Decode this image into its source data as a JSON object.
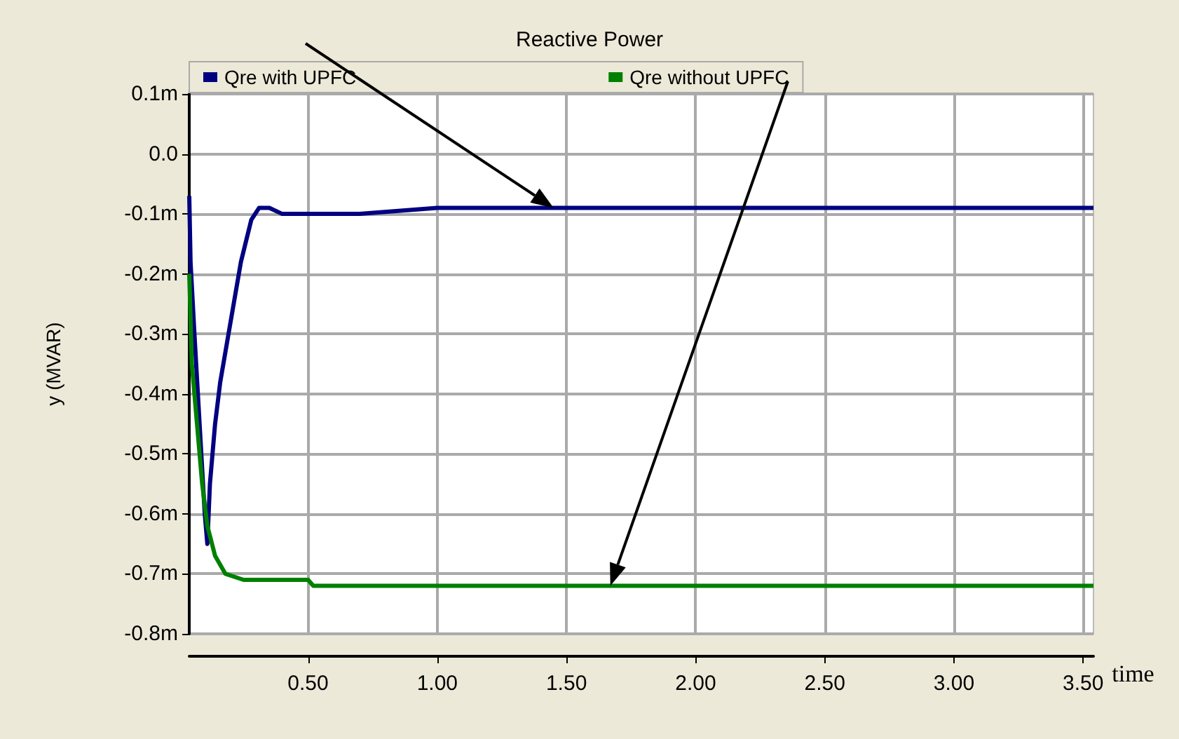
{
  "chart_data": {
    "type": "line",
    "title": "Reactive Power",
    "xlabel": "time",
    "ylabel": "y (MVAR)",
    "xlim": [
      0.04,
      3.54
    ],
    "ylim": [
      -0.8,
      0.1
    ],
    "xticks": [
      {
        "value": 0.5,
        "label": "0.50"
      },
      {
        "value": 1,
        "label": "1.00"
      },
      {
        "value": 1.5,
        "label": "1.50"
      },
      {
        "value": 2,
        "label": "2.00"
      },
      {
        "value": 2.5,
        "label": "2.50"
      },
      {
        "value": 3,
        "label": "3.00"
      },
      {
        "value": 3.5,
        "label": "3.50"
      }
    ],
    "yticks": [
      {
        "value": 0.1,
        "label": "0.1m"
      },
      {
        "value": 0,
        "label": "0.0"
      },
      {
        "value": -0.1,
        "label": "-0.1m"
      },
      {
        "value": -0.2,
        "label": "-0.2m"
      },
      {
        "value": -0.3,
        "label": "-0.3m"
      },
      {
        "value": -0.4,
        "label": "-0.4m"
      },
      {
        "value": -0.5,
        "label": "-0.5m"
      },
      {
        "value": -0.6,
        "label": "-0.6m"
      },
      {
        "value": -0.7,
        "label": "-0.7m"
      },
      {
        "value": -0.8,
        "label": "-0.8m"
      }
    ],
    "grid": true,
    "legend": "top",
    "marker": "none",
    "line_style": "solid",
    "series": [
      {
        "name": "Qre with UPFC",
        "color": "#000080",
        "x": [
          0.04,
          0.045,
          0.06,
          0.08,
          0.1,
          0.11,
          0.12,
          0.14,
          0.16,
          0.2,
          0.24,
          0.28,
          0.31,
          0.35,
          0.4,
          0.5,
          0.7,
          1.0,
          1.5,
          2.0,
          3.0,
          3.54
        ],
        "values": [
          -0.07,
          -0.18,
          -0.3,
          -0.45,
          -0.6,
          -0.65,
          -0.55,
          -0.45,
          -0.38,
          -0.28,
          -0.18,
          -0.11,
          -0.09,
          -0.09,
          -0.1,
          -0.1,
          -0.1,
          -0.09,
          -0.09,
          -0.09,
          -0.09,
          -0.09
        ]
      },
      {
        "name": "Qre without UPFC",
        "color": "#008000",
        "x": [
          0.04,
          0.05,
          0.07,
          0.09,
          0.11,
          0.14,
          0.18,
          0.25,
          0.5,
          0.52,
          3.54
        ],
        "values": [
          -0.2,
          -0.35,
          -0.45,
          -0.55,
          -0.62,
          -0.67,
          -0.7,
          -0.71,
          -0.71,
          -0.72,
          -0.72
        ]
      }
    ]
  }
}
